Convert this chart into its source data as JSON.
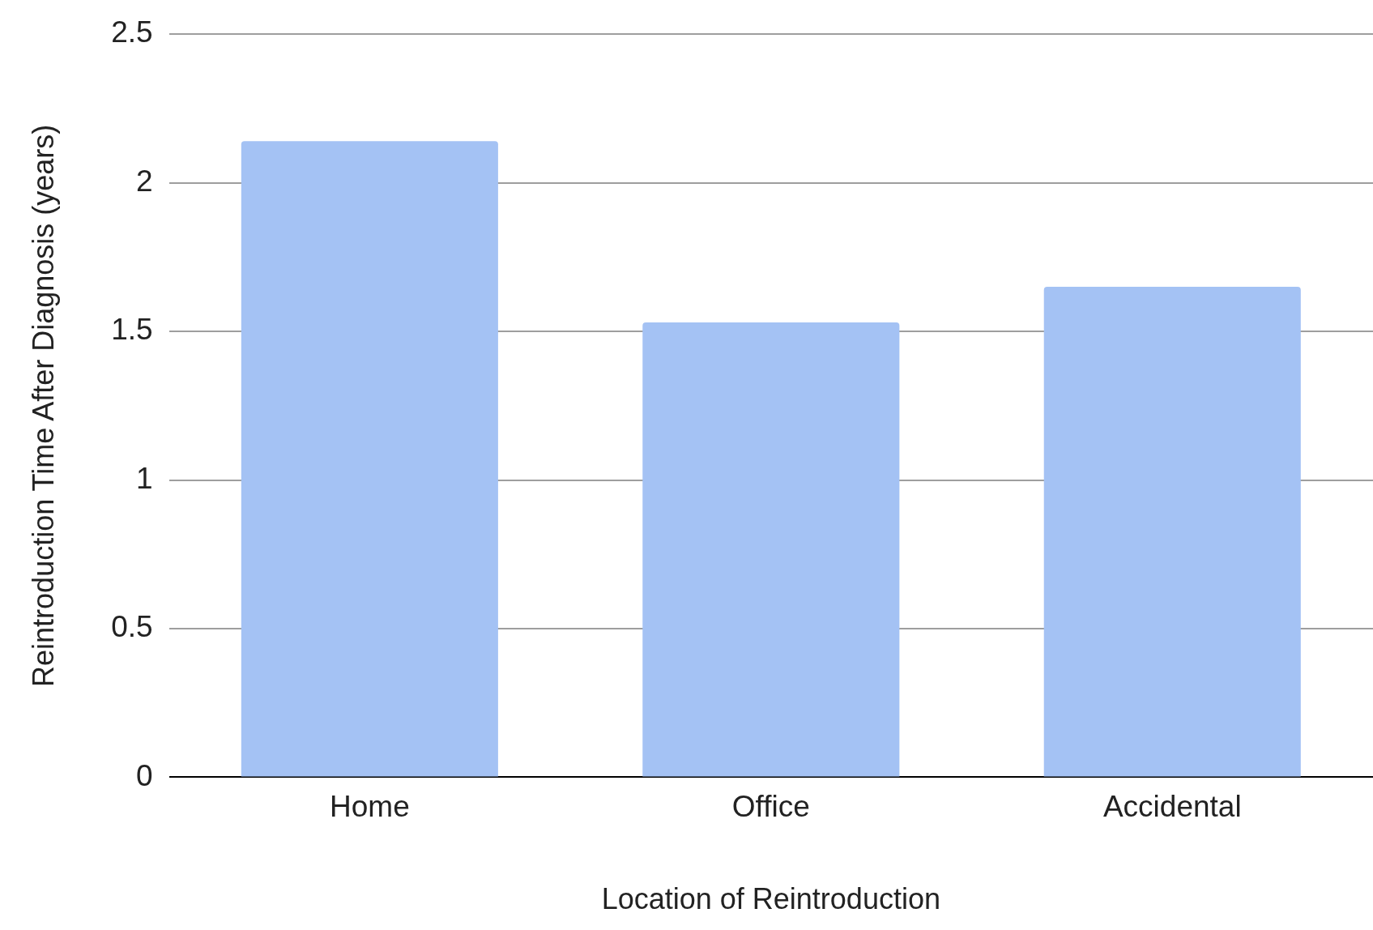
{
  "chart_data": {
    "type": "bar",
    "xlabel": "Location of Reintroduction",
    "ylabel": "Reintroduction Time After Diagnosis (years)",
    "categories": [
      "Home",
      "Office",
      "Accidental"
    ],
    "values": [
      2.14,
      1.53,
      1.65
    ],
    "color": "#a4c2f4",
    "ylim": [
      0,
      2.5
    ],
    "yticks": [
      0,
      0.5,
      1,
      1.5,
      2,
      2.5
    ],
    "grid": "y",
    "legend": false
  }
}
